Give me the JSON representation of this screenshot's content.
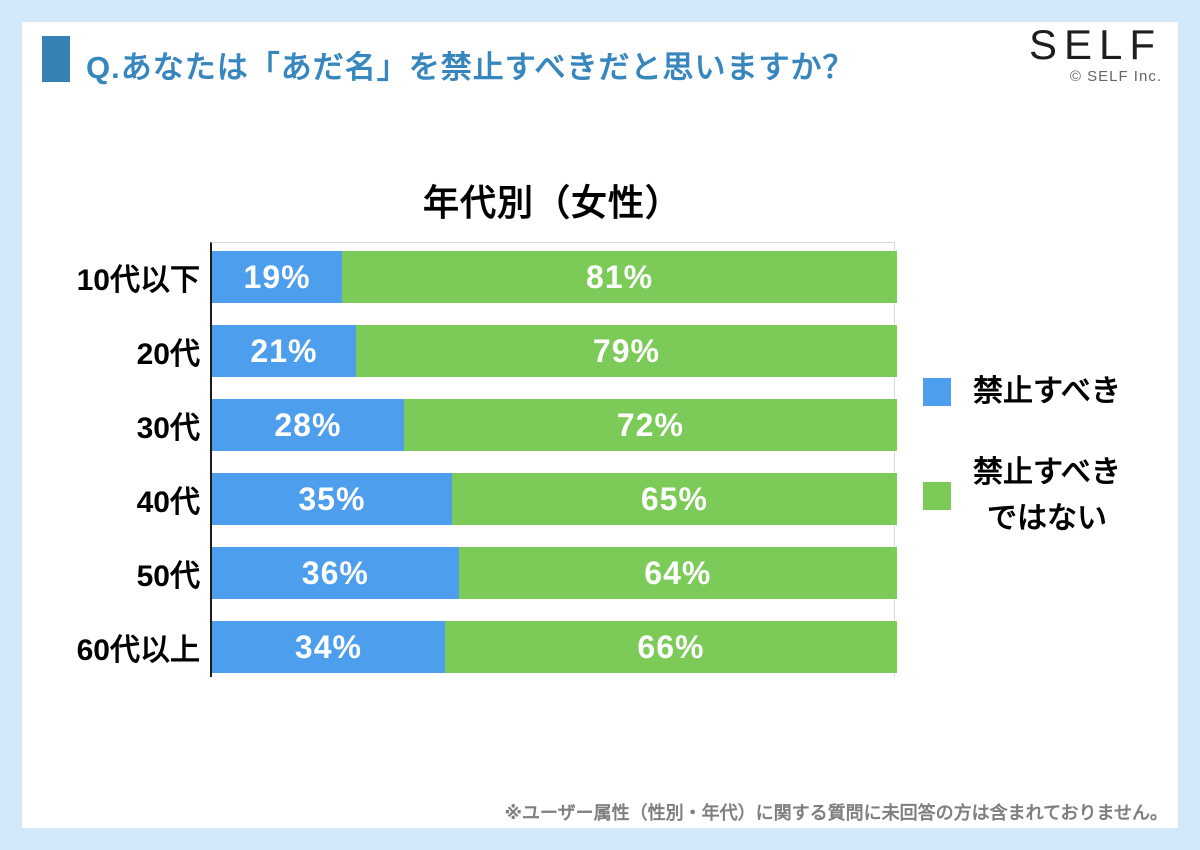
{
  "page": {
    "background_color": "#D3E8F9",
    "card_color": "#FFFFFF"
  },
  "header": {
    "question": "Q.あなたは「あだ名」を禁止すべきだと思いますか？",
    "accent_color": "#3782B4",
    "logo_text": "SELF",
    "logo_copyright": "© SELF Inc."
  },
  "chart_data": {
    "type": "bar",
    "orientation": "horizontal",
    "stacked": true,
    "title": "年代別（女性）",
    "categories": [
      "10代以下",
      "20代",
      "30代",
      "40代",
      "50代",
      "60代以上"
    ],
    "series": [
      {
        "name": "禁止すべき",
        "color": "#4D9EEC",
        "values": [
          19,
          21,
          28,
          35,
          36,
          34
        ]
      },
      {
        "name": "禁止すべきではない",
        "color": "#7CCB58",
        "values": [
          81,
          79,
          72,
          65,
          64,
          66
        ]
      }
    ],
    "value_suffix": "%",
    "xlim": [
      0,
      100
    ],
    "data_labels": "inside, white bold",
    "legend_position": "right",
    "grid": false,
    "axis": {
      "left_line_color": "#1a1a1a",
      "frame_line_color": "#D9D9D9"
    }
  },
  "legend": {
    "items": [
      {
        "color": "#4D9EEC",
        "lines": [
          "禁止すべき"
        ]
      },
      {
        "color": "#7CCB58",
        "lines": [
          "禁止すべき",
          "ではない"
        ]
      }
    ]
  },
  "footer": {
    "note": "※ユーザー属性（性別・年代）に関する質問に未回答の方は含まれておりません。"
  }
}
